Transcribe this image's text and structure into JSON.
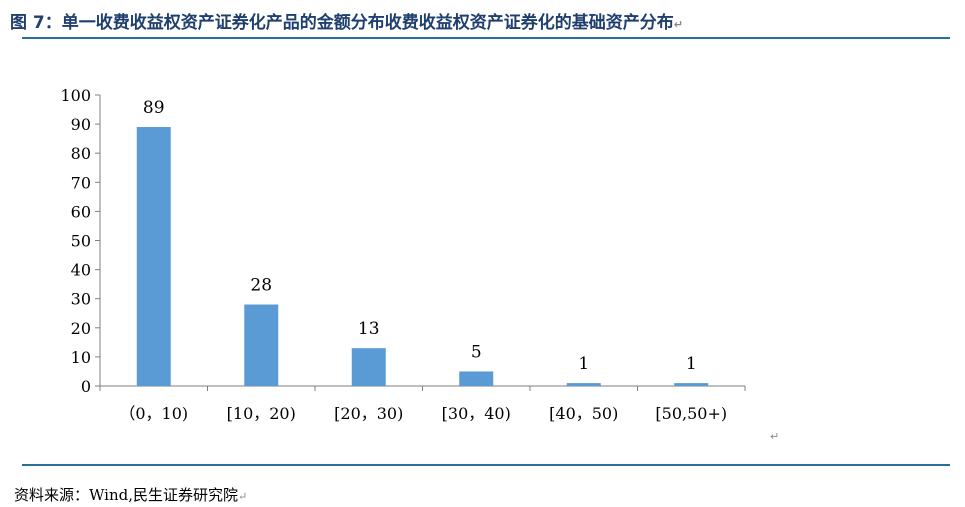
{
  "title": "图 7：单一收费收益权资产证券化产品的金额分布收费收益权资产证券化的基础资产分布",
  "source": "资料来源：Wind,民生证券研究院",
  "colors": {
    "bar": "#5b9bd5",
    "rule": "#2a6f97",
    "title": "#1f3f6e"
  },
  "chart_data": {
    "type": "bar",
    "categories": [
      "（0，10)",
      "[10，20)",
      "[20，30)",
      "[30，40)",
      "[40，50)",
      "[50,50+)"
    ],
    "values": [
      89,
      28,
      13,
      5,
      1,
      1
    ],
    "ylim": [
      0,
      100
    ],
    "yticks": [
      0,
      10,
      20,
      30,
      40,
      50,
      60,
      70,
      80,
      90,
      100
    ],
    "grid": false,
    "data_labels": true
  }
}
